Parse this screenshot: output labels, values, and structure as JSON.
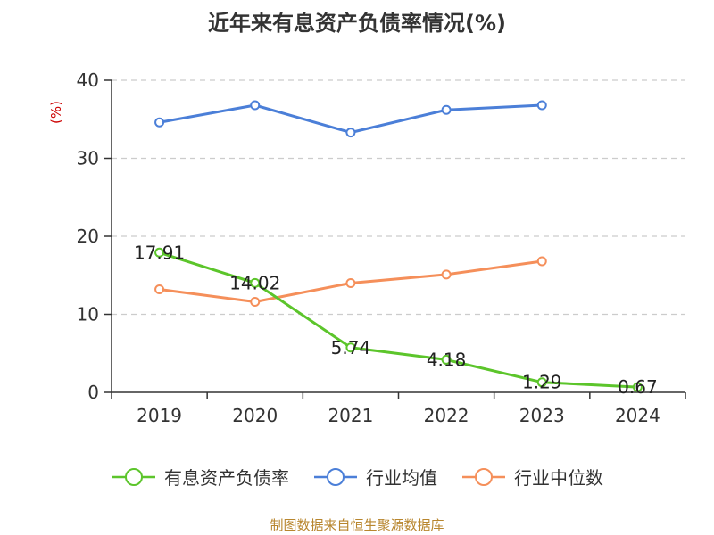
{
  "chart_data": {
    "type": "line",
    "title": "近年来有息资产负债率情况(%)",
    "ylabel": "(%)",
    "xlabel": "",
    "categories": [
      "2019",
      "2020",
      "2021",
      "2022",
      "2023",
      "2024"
    ],
    "ylim": [
      0,
      40
    ],
    "yticks": [
      0,
      10,
      20,
      30,
      40
    ],
    "grid": true,
    "legend_position": "bottom",
    "series": [
      {
        "name": "有息资产负债率",
        "color": "#5cc52b",
        "values": [
          17.91,
          14.02,
          5.74,
          4.18,
          1.29,
          0.67
        ],
        "labels": [
          "17.91",
          "14.02",
          "5.74",
          "4.18",
          "1.29",
          "0.67"
        ]
      },
      {
        "name": "行业均值",
        "color": "#4b7fd8",
        "values": [
          34.6,
          36.8,
          33.3,
          36.2,
          36.8,
          null
        ]
      },
      {
        "name": "行业中位数",
        "color": "#f58f5a",
        "values": [
          13.2,
          11.6,
          14.0,
          15.1,
          16.8,
          null
        ]
      }
    ]
  },
  "source": "制图数据来自恒生聚源数据库"
}
